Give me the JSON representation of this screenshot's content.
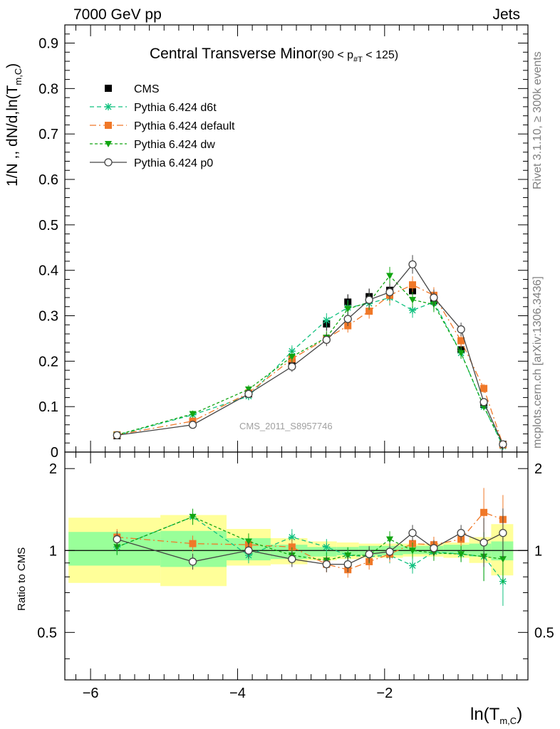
{
  "header": {
    "energy": "7000 GeV pp",
    "group": "Jets"
  },
  "side_labels": {
    "rivet": "Rivet 3.1.10, ≥ 300k events",
    "mcplots": "mcplots.cern.ch [arXiv:1306.3436]"
  },
  "watermark": "CMS_2011_S8957746",
  "chart_data": {
    "type": "line",
    "title": "Central Transverse Minor",
    "title_cut": {
      "prefix": "(90 < p",
      "sub": "#T",
      "suffix": " < 125)"
    },
    "ylabel": {
      "prefix": "1/N ,, dN/d,ln(T",
      "sub": "m,C",
      "suffix": ")"
    },
    "xlabel": {
      "prefix": "ln(T",
      "sub": "m,C",
      "suffix": ")"
    },
    "ratio_ylabel": "Ratio to CMS",
    "xlim": [
      -6.35,
      -0.05
    ],
    "ylim_main": [
      0,
      0.94
    ],
    "ylim_ratio": [
      0.3346,
      2.3
    ],
    "ratio_log_scale": true,
    "x_ticks": [
      "−6",
      "−4",
      "−2"
    ],
    "x_tick_values": [
      -6,
      -4,
      -2
    ],
    "y_ticks_main": [
      "0",
      "0.1",
      "0.2",
      "0.3",
      "0.4",
      "0.5",
      "0.6",
      "0.7",
      "0.8",
      "0.9"
    ],
    "y_ticks_ratio_left": [
      "0.5",
      "1",
      "2"
    ],
    "y_ticks_ratio_right": [
      "0.5",
      "1",
      "2"
    ],
    "x": [
      -5.64,
      -4.61,
      -3.85,
      -3.26,
      -2.79,
      -2.5,
      -2.21,
      -1.93,
      -1.62,
      -1.33,
      -0.96,
      -0.65,
      -0.39
    ],
    "bin_edges": [
      -6.3,
      -5.05,
      -4.15,
      -3.55,
      -3.05,
      -2.65,
      -2.35,
      -2.05,
      -1.75,
      -1.45,
      -1.2,
      -0.85,
      -0.55,
      -0.25
    ],
    "band_inner": [
      [
        0.88,
        1.17
      ],
      [
        0.87,
        1.18
      ],
      [
        0.92,
        1.11
      ],
      [
        0.93,
        1.05
      ],
      [
        0.95,
        1.03
      ],
      [
        0.96,
        1.03
      ],
      [
        0.96,
        1.04
      ],
      [
        0.96,
        1.04
      ],
      [
        0.97,
        1.04
      ],
      [
        0.97,
        1.04
      ],
      [
        0.97,
        1.05
      ],
      [
        0.95,
        1.06
      ],
      [
        0.92,
        1.08
      ]
    ],
    "band_outer": [
      [
        0.76,
        1.32
      ],
      [
        0.74,
        1.35
      ],
      [
        0.88,
        1.2
      ],
      [
        0.89,
        1.11
      ],
      [
        0.92,
        1.08
      ],
      [
        0.93,
        1.07
      ],
      [
        0.94,
        1.06
      ],
      [
        0.94,
        1.06
      ],
      [
        0.95,
        1.06
      ],
      [
        0.95,
        1.06
      ],
      [
        0.94,
        1.07
      ],
      [
        0.9,
        1.12
      ],
      [
        0.81,
        1.25
      ]
    ],
    "series": [
      {
        "name": "CMS",
        "color": "#000000",
        "marker": "square",
        "line": "none",
        "values": [
          0.036,
          0.063,
          0.128,
          0.198,
          0.282,
          0.33,
          0.342,
          0.356,
          0.355,
          0.333,
          0.225,
          0.105,
          0.017
        ]
      },
      {
        "name": "Pythia 6.424 d6t",
        "color": "#11c17f",
        "marker": "star",
        "line": "6,4",
        "values": [
          0.037,
          0.082,
          0.123,
          0.222,
          0.29,
          0.318,
          0.327,
          0.34,
          0.312,
          0.33,
          0.218,
          0.1,
          0.013
        ],
        "ratio": [
          1.03,
          1.33,
          0.96,
          1.12,
          1.03,
          0.96,
          0.95,
          0.96,
          0.88,
          0.99,
          0.97,
          0.95,
          0.77
        ]
      },
      {
        "name": "Pythia 6.424 default",
        "color": "#f07828",
        "marker": "square",
        "line": "9,4,2,4",
        "values": [
          0.038,
          0.068,
          0.13,
          0.205,
          0.25,
          0.278,
          0.31,
          0.345,
          0.368,
          0.345,
          0.245,
          0.14,
          0.016
        ],
        "ratio": [
          1.12,
          1.06,
          1.05,
          1.03,
          0.89,
          0.85,
          0.91,
          0.97,
          1.06,
          1.05,
          1.1,
          1.38,
          1.3
        ]
      },
      {
        "name": "Pythia 6.424 dw",
        "color": "#11a511",
        "marker": "triangle",
        "line": "4,3",
        "values": [
          0.038,
          0.084,
          0.138,
          0.21,
          0.252,
          0.315,
          0.33,
          0.388,
          0.335,
          0.325,
          0.218,
          0.1,
          0.016
        ],
        "ratio": [
          1.03,
          1.33,
          1.08,
          0.96,
          0.92,
          0.96,
          0.96,
          1.1,
          1.0,
          0.98,
          0.97,
          0.95,
          0.93
        ]
      },
      {
        "name": "Pythia 6.424 p0",
        "color": "#444444",
        "marker": "circle-open",
        "line": "none-solid",
        "values": [
          0.037,
          0.06,
          0.128,
          0.188,
          0.247,
          0.293,
          0.335,
          0.352,
          0.413,
          0.34,
          0.27,
          0.11,
          0.017
        ],
        "ratio": [
          1.1,
          0.91,
          1.0,
          0.93,
          0.89,
          0.89,
          0.97,
          0.99,
          1.16,
          1.02,
          1.16,
          1.07,
          1.16
        ]
      }
    ],
    "legend_position": "top-left"
  }
}
